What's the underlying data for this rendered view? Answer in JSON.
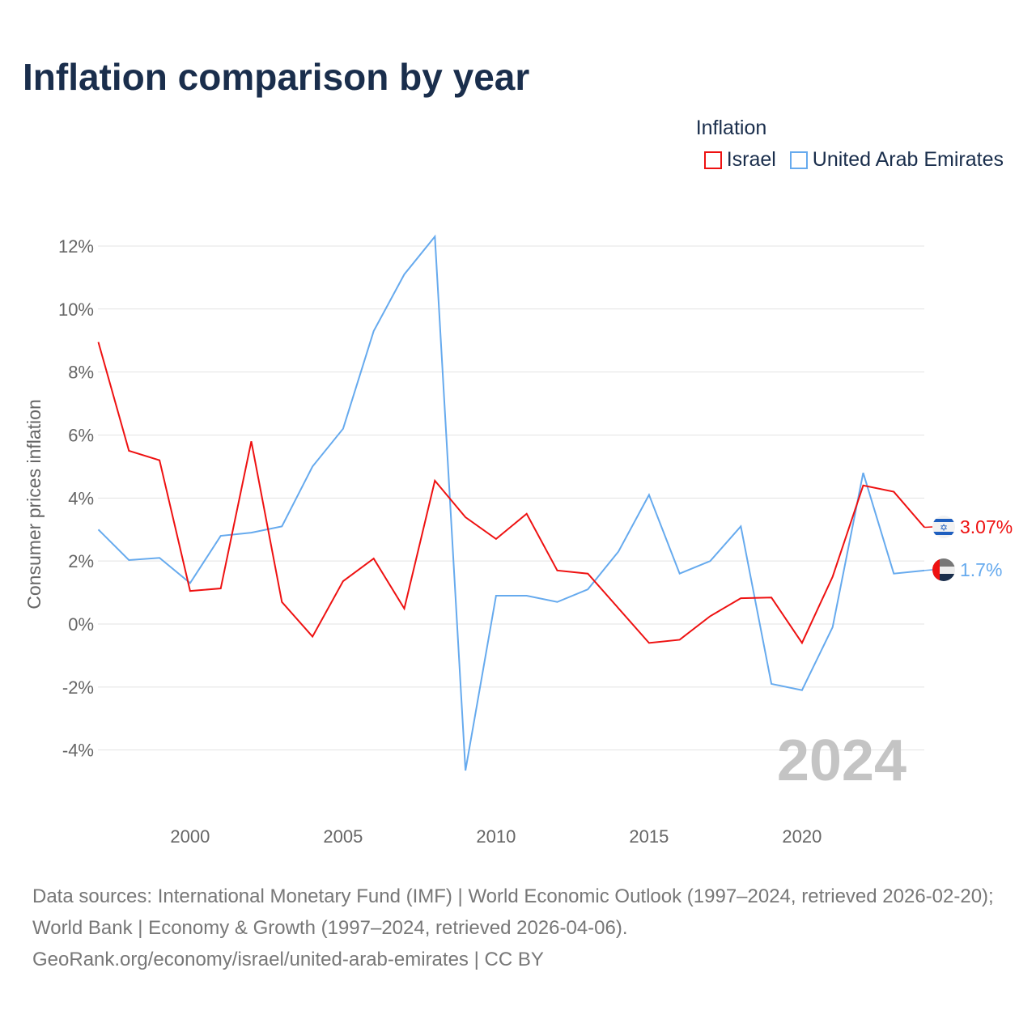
{
  "title": "Inflation comparison by year",
  "source": "Data sources: International Monetary Fund (IMF) | World Economic Outlook (1997–2024, retrieved 2026-02-20); World Bank | Economy & Growth (1997–2024, retrieved 2026-04-06).",
  "credit": "GeoRank.org/economy/israel/united-arab-emirates | CC BY",
  "chart_data": {
    "type": "line",
    "title": "Inflation comparison by year",
    "legend_title": "Inflation",
    "legend_position": "top-right",
    "ylabel": "Consumer prices inflation",
    "xlabel": "",
    "ylim": [
      -5,
      12.5
    ],
    "xlim": [
      1997,
      2024
    ],
    "yticks": [
      -4,
      -2,
      0,
      2,
      4,
      6,
      8,
      10,
      12
    ],
    "ytick_labels": [
      "-4%",
      "-2%",
      "0%",
      "2%",
      "4%",
      "6%",
      "8%",
      "10%",
      "12%"
    ],
    "xticks": [
      2000,
      2005,
      2010,
      2015,
      2020
    ],
    "xtick_labels": [
      "2000",
      "2005",
      "2010",
      "2015",
      "2020"
    ],
    "year_watermark": "2024",
    "grid": true,
    "x": [
      1997,
      1998,
      1999,
      2000,
      2001,
      2002,
      2003,
      2004,
      2005,
      2006,
      2007,
      2008,
      2009,
      2010,
      2011,
      2012,
      2013,
      2014,
      2015,
      2016,
      2017,
      2018,
      2019,
      2020,
      2021,
      2022,
      2023,
      2024
    ],
    "series": [
      {
        "name": "Israel",
        "color": "#ee1111",
        "end_label": "3.07%",
        "flag": "israel-flag",
        "values": [
          8.95,
          5.5,
          5.2,
          1.05,
          1.13,
          5.8,
          0.7,
          -0.4,
          1.36,
          2.08,
          0.49,
          4.55,
          3.39,
          2.7,
          3.5,
          1.7,
          1.6,
          0.5,
          -0.6,
          -0.5,
          0.25,
          0.82,
          0.84,
          -0.6,
          1.5,
          4.4,
          4.2,
          3.07
        ]
      },
      {
        "name": "United Arab Emirates",
        "color": "#66aaee",
        "end_label": "1.7%",
        "flag": "uae-flag",
        "values": [
          3.0,
          2.03,
          2.1,
          1.3,
          2.8,
          2.9,
          3.1,
          5.0,
          6.2,
          9.3,
          11.1,
          12.3,
          -4.65,
          0.9,
          0.9,
          0.7,
          1.1,
          2.3,
          4.1,
          1.6,
          2.0,
          3.1,
          -1.9,
          -2.1,
          -0.1,
          4.8,
          1.6,
          1.7
        ]
      }
    ]
  }
}
